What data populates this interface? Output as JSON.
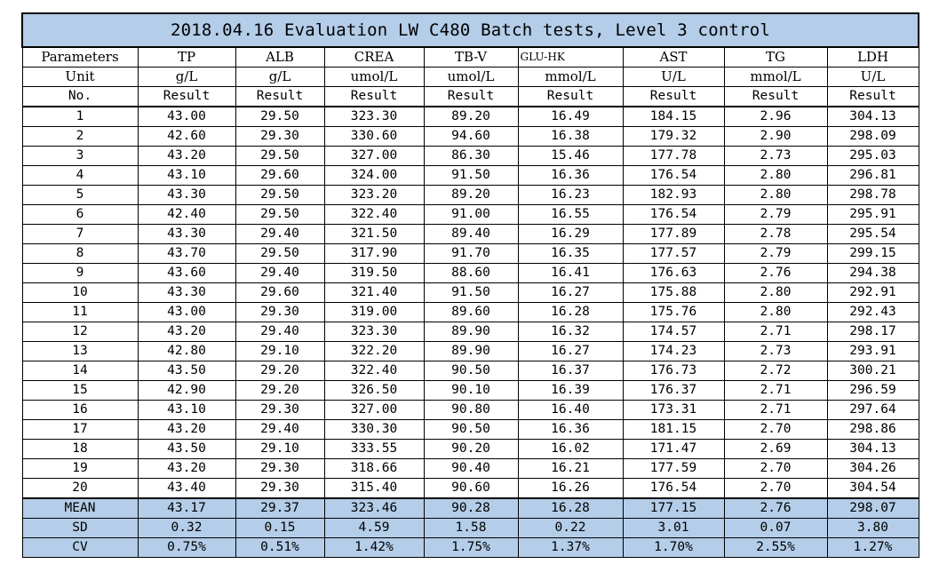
{
  "title": "2018.04.16 Evaluation LW C480 Batch tests, Level 3 control",
  "header_labels": {
    "parameters": "Parameters",
    "unit": "Unit",
    "no": "No."
  },
  "columns": [
    {
      "param": "TP",
      "unit": "g/L",
      "result": "Result"
    },
    {
      "param": "ALB",
      "unit": "g/L",
      "result": "Result"
    },
    {
      "param": "CREA",
      "unit": "umol/L",
      "result": "Result"
    },
    {
      "param": "TB-V",
      "unit": "umol/L",
      "result": "Result"
    },
    {
      "param": "GLU-HK",
      "unit": "mmol/L",
      "result": "Result"
    },
    {
      "param": "AST",
      "unit": "U/L",
      "result": "Result"
    },
    {
      "param": "TG",
      "unit": "mmol/L",
      "result": "Result"
    },
    {
      "param": "LDH",
      "unit": "U/L",
      "result": "Result"
    }
  ],
  "rows": [
    {
      "no": "1",
      "values": [
        "43.00",
        "29.50",
        "323.30",
        "89.20",
        "16.49",
        "184.15",
        "2.96",
        "304.13"
      ]
    },
    {
      "no": "2",
      "values": [
        "42.60",
        "29.30",
        "330.60",
        "94.60",
        "16.38",
        "179.32",
        "2.90",
        "298.09"
      ]
    },
    {
      "no": "3",
      "values": [
        "43.20",
        "29.50",
        "327.00",
        "86.30",
        "15.46",
        "177.78",
        "2.73",
        "295.03"
      ]
    },
    {
      "no": "4",
      "values": [
        "43.10",
        "29.60",
        "324.00",
        "91.50",
        "16.36",
        "176.54",
        "2.80",
        "296.81"
      ]
    },
    {
      "no": "5",
      "values": [
        "43.30",
        "29.50",
        "323.20",
        "89.20",
        "16.23",
        "182.93",
        "2.80",
        "298.78"
      ]
    },
    {
      "no": "6",
      "values": [
        "42.40",
        "29.50",
        "322.40",
        "91.00",
        "16.55",
        "176.54",
        "2.79",
        "295.91"
      ]
    },
    {
      "no": "7",
      "values": [
        "43.30",
        "29.40",
        "321.50",
        "89.40",
        "16.29",
        "177.89",
        "2.78",
        "295.54"
      ]
    },
    {
      "no": "8",
      "values": [
        "43.70",
        "29.50",
        "317.90",
        "91.70",
        "16.35",
        "177.57",
        "2.79",
        "299.15"
      ]
    },
    {
      "no": "9",
      "values": [
        "43.60",
        "29.40",
        "319.50",
        "88.60",
        "16.41",
        "176.63",
        "2.76",
        "294.38"
      ]
    },
    {
      "no": "10",
      "values": [
        "43.30",
        "29.60",
        "321.40",
        "91.50",
        "16.27",
        "175.88",
        "2.80",
        "292.91"
      ]
    },
    {
      "no": "11",
      "values": [
        "43.00",
        "29.30",
        "319.00",
        "89.60",
        "16.28",
        "175.76",
        "2.80",
        "292.43"
      ]
    },
    {
      "no": "12",
      "values": [
        "43.20",
        "29.40",
        "323.30",
        "89.90",
        "16.32",
        "174.57",
        "2.71",
        "298.17"
      ]
    },
    {
      "no": "13",
      "values": [
        "42.80",
        "29.10",
        "322.20",
        "89.90",
        "16.27",
        "174.23",
        "2.73",
        "293.91"
      ]
    },
    {
      "no": "14",
      "values": [
        "43.50",
        "29.20",
        "322.40",
        "90.50",
        "16.37",
        "176.73",
        "2.72",
        "300.21"
      ]
    },
    {
      "no": "15",
      "values": [
        "42.90",
        "29.20",
        "326.50",
        "90.10",
        "16.39",
        "176.37",
        "2.71",
        "296.59"
      ]
    },
    {
      "no": "16",
      "values": [
        "43.10",
        "29.30",
        "327.00",
        "90.80",
        "16.40",
        "173.31",
        "2.71",
        "297.64"
      ]
    },
    {
      "no": "17",
      "values": [
        "43.20",
        "29.40",
        "330.30",
        "90.50",
        "16.36",
        "181.15",
        "2.70",
        "298.86"
      ]
    },
    {
      "no": "18",
      "values": [
        "43.50",
        "29.10",
        "333.55",
        "90.20",
        "16.02",
        "171.47",
        "2.69",
        "304.13"
      ]
    },
    {
      "no": "19",
      "values": [
        "43.20",
        "29.30",
        "318.66",
        "90.40",
        "16.21",
        "177.59",
        "2.70",
        "304.26"
      ]
    },
    {
      "no": "20",
      "values": [
        "43.40",
        "29.30",
        "315.40",
        "90.60",
        "16.26",
        "176.54",
        "2.70",
        "304.54"
      ]
    }
  ],
  "stats": [
    {
      "label": "MEAN",
      "values": [
        "43.17",
        "29.37",
        "323.46",
        "90.28",
        "16.28",
        "177.15",
        "2.76",
        "298.07"
      ]
    },
    {
      "label": "SD",
      "values": [
        "0.32",
        "0.15",
        "4.59",
        "1.58",
        "0.22",
        "3.01",
        "0.07",
        "3.80"
      ]
    },
    {
      "label": "CV",
      "values": [
        "0.75%",
        "0.51%",
        "1.42%",
        "1.75%",
        "1.37%",
        "1.70%",
        "2.55%",
        "1.27%"
      ]
    }
  ],
  "colors": {
    "title_bg": "#b4cde8",
    "stat_bg": "#b4cde8"
  }
}
